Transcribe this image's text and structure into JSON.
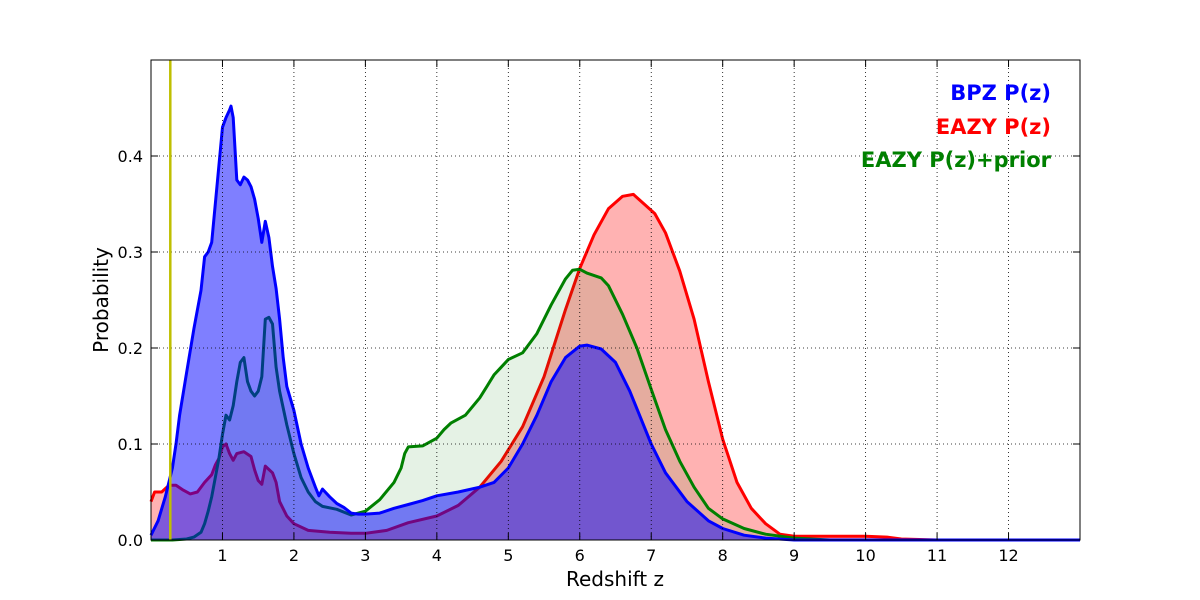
{
  "chart_data": {
    "type": "area",
    "xlabel": "Redshift z",
    "ylabel": "Probability",
    "xlim": [
      0,
      13
    ],
    "ylim": [
      0,
      0.5
    ],
    "xticks": [
      1,
      2,
      3,
      4,
      5,
      6,
      7,
      8,
      9,
      10,
      11,
      12
    ],
    "xtick_labels": [
      "1",
      "2",
      "3",
      "4",
      "5",
      "6",
      "7",
      "8",
      "9",
      "10",
      "11",
      "12"
    ],
    "yticks": [
      0.0,
      0.1,
      0.2,
      0.3,
      0.4
    ],
    "ytick_labels": [
      "0.0",
      "0.1",
      "0.2",
      "0.3",
      "0.4"
    ],
    "grid": true,
    "legend_position": "top-right",
    "vline": {
      "x": 0.27,
      "color": "#bfbf00"
    },
    "series": [
      {
        "name": "EAZY P(z)",
        "color": "#ff0000",
        "fill": "#ff0000",
        "fill_opacity": 0.3,
        "points": [
          [
            0,
            0.04
          ],
          [
            0.05,
            0.05
          ],
          [
            0.15,
            0.05
          ],
          [
            0.25,
            0.057
          ],
          [
            0.35,
            0.057
          ],
          [
            0.45,
            0.052
          ],
          [
            0.55,
            0.048
          ],
          [
            0.65,
            0.05
          ],
          [
            0.75,
            0.06
          ],
          [
            0.85,
            0.068
          ],
          [
            0.9,
            0.078
          ],
          [
            0.95,
            0.085
          ],
          [
            1.0,
            0.097
          ],
          [
            1.05,
            0.1
          ],
          [
            1.1,
            0.09
          ],
          [
            1.15,
            0.083
          ],
          [
            1.2,
            0.09
          ],
          [
            1.3,
            0.092
          ],
          [
            1.4,
            0.087
          ],
          [
            1.45,
            0.073
          ],
          [
            1.5,
            0.062
          ],
          [
            1.55,
            0.058
          ],
          [
            1.6,
            0.077
          ],
          [
            1.7,
            0.07
          ],
          [
            1.75,
            0.06
          ],
          [
            1.8,
            0.04
          ],
          [
            1.9,
            0.025
          ],
          [
            2.0,
            0.017
          ],
          [
            2.2,
            0.01
          ],
          [
            2.5,
            0.008
          ],
          [
            2.8,
            0.007
          ],
          [
            3.0,
            0.007
          ],
          [
            3.3,
            0.01
          ],
          [
            3.6,
            0.018
          ],
          [
            4.0,
            0.025
          ],
          [
            4.3,
            0.036
          ],
          [
            4.6,
            0.055
          ],
          [
            4.9,
            0.082
          ],
          [
            5.2,
            0.118
          ],
          [
            5.5,
            0.17
          ],
          [
            5.8,
            0.24
          ],
          [
            6.0,
            0.283
          ],
          [
            6.2,
            0.318
          ],
          [
            6.4,
            0.345
          ],
          [
            6.6,
            0.358
          ],
          [
            6.75,
            0.36
          ],
          [
            6.9,
            0.35
          ],
          [
            7.05,
            0.34
          ],
          [
            7.2,
            0.32
          ],
          [
            7.4,
            0.28
          ],
          [
            7.6,
            0.23
          ],
          [
            7.8,
            0.165
          ],
          [
            8.0,
            0.105
          ],
          [
            8.2,
            0.06
          ],
          [
            8.4,
            0.033
          ],
          [
            8.6,
            0.017
          ],
          [
            8.8,
            0.006
          ],
          [
            9.0,
            0.004
          ],
          [
            9.5,
            0.004
          ],
          [
            10.0,
            0.004
          ],
          [
            10.3,
            0.003
          ],
          [
            10.5,
            0.001
          ],
          [
            11.0,
            0.0
          ],
          [
            13,
            0.0
          ]
        ]
      },
      {
        "name": "EAZY P(z)+prior",
        "color": "#008000",
        "fill": "#008000",
        "fill_opacity": 0.1,
        "points": [
          [
            0,
            0.0
          ],
          [
            0.3,
            0.0
          ],
          [
            0.5,
            0.001
          ],
          [
            0.6,
            0.003
          ],
          [
            0.7,
            0.008
          ],
          [
            0.75,
            0.017
          ],
          [
            0.8,
            0.03
          ],
          [
            0.85,
            0.045
          ],
          [
            0.9,
            0.065
          ],
          [
            0.95,
            0.085
          ],
          [
            1.0,
            0.11
          ],
          [
            1.05,
            0.13
          ],
          [
            1.1,
            0.125
          ],
          [
            1.15,
            0.14
          ],
          [
            1.2,
            0.165
          ],
          [
            1.25,
            0.185
          ],
          [
            1.3,
            0.19
          ],
          [
            1.35,
            0.165
          ],
          [
            1.4,
            0.155
          ],
          [
            1.45,
            0.15
          ],
          [
            1.5,
            0.155
          ],
          [
            1.55,
            0.17
          ],
          [
            1.6,
            0.23
          ],
          [
            1.65,
            0.232
          ],
          [
            1.7,
            0.225
          ],
          [
            1.75,
            0.18
          ],
          [
            1.8,
            0.155
          ],
          [
            1.9,
            0.12
          ],
          [
            2.0,
            0.09
          ],
          [
            2.1,
            0.065
          ],
          [
            2.2,
            0.05
          ],
          [
            2.3,
            0.04
          ],
          [
            2.4,
            0.035
          ],
          [
            2.6,
            0.032
          ],
          [
            2.8,
            0.026
          ],
          [
            3.0,
            0.03
          ],
          [
            3.2,
            0.042
          ],
          [
            3.4,
            0.06
          ],
          [
            3.5,
            0.075
          ],
          [
            3.55,
            0.09
          ],
          [
            3.6,
            0.097
          ],
          [
            3.8,
            0.098
          ],
          [
            4.0,
            0.106
          ],
          [
            4.1,
            0.115
          ],
          [
            4.2,
            0.122
          ],
          [
            4.4,
            0.13
          ],
          [
            4.6,
            0.148
          ],
          [
            4.7,
            0.16
          ],
          [
            4.8,
            0.172
          ],
          [
            4.9,
            0.18
          ],
          [
            5.0,
            0.188
          ],
          [
            5.2,
            0.195
          ],
          [
            5.4,
            0.215
          ],
          [
            5.6,
            0.245
          ],
          [
            5.8,
            0.272
          ],
          [
            5.9,
            0.281
          ],
          [
            6.0,
            0.282
          ],
          [
            6.1,
            0.278
          ],
          [
            6.3,
            0.273
          ],
          [
            6.4,
            0.265
          ],
          [
            6.6,
            0.235
          ],
          [
            6.8,
            0.2
          ],
          [
            7.0,
            0.157
          ],
          [
            7.2,
            0.115
          ],
          [
            7.4,
            0.082
          ],
          [
            7.6,
            0.055
          ],
          [
            7.8,
            0.033
          ],
          [
            8.0,
            0.022
          ],
          [
            8.3,
            0.012
          ],
          [
            8.6,
            0.006
          ],
          [
            9.0,
            0.002
          ],
          [
            9.5,
            0.0
          ],
          [
            13,
            0.0
          ]
        ]
      },
      {
        "name": "BPZ P(z)",
        "color": "#0000ff",
        "fill": "#0000ff",
        "fill_opacity": 0.5,
        "points": [
          [
            0,
            0.005
          ],
          [
            0.1,
            0.02
          ],
          [
            0.2,
            0.045
          ],
          [
            0.3,
            0.075
          ],
          [
            0.35,
            0.1
          ],
          [
            0.4,
            0.13
          ],
          [
            0.5,
            0.175
          ],
          [
            0.6,
            0.22
          ],
          [
            0.7,
            0.26
          ],
          [
            0.75,
            0.295
          ],
          [
            0.8,
            0.3
          ],
          [
            0.85,
            0.31
          ],
          [
            0.9,
            0.35
          ],
          [
            0.95,
            0.39
          ],
          [
            1.0,
            0.43
          ],
          [
            1.05,
            0.44
          ],
          [
            1.1,
            0.448
          ],
          [
            1.12,
            0.452
          ],
          [
            1.15,
            0.44
          ],
          [
            1.2,
            0.375
          ],
          [
            1.25,
            0.37
          ],
          [
            1.3,
            0.378
          ],
          [
            1.35,
            0.375
          ],
          [
            1.4,
            0.368
          ],
          [
            1.45,
            0.355
          ],
          [
            1.5,
            0.335
          ],
          [
            1.55,
            0.31
          ],
          [
            1.6,
            0.332
          ],
          [
            1.65,
            0.315
          ],
          [
            1.7,
            0.285
          ],
          [
            1.75,
            0.262
          ],
          [
            1.8,
            0.23
          ],
          [
            1.85,
            0.19
          ],
          [
            1.9,
            0.16
          ],
          [
            2.0,
            0.135
          ],
          [
            2.1,
            0.1
          ],
          [
            2.2,
            0.075
          ],
          [
            2.3,
            0.055
          ],
          [
            2.35,
            0.046
          ],
          [
            2.4,
            0.053
          ],
          [
            2.5,
            0.045
          ],
          [
            2.6,
            0.038
          ],
          [
            2.7,
            0.034
          ],
          [
            2.8,
            0.028
          ],
          [
            2.9,
            0.027
          ],
          [
            3.0,
            0.027
          ],
          [
            3.2,
            0.028
          ],
          [
            3.4,
            0.033
          ],
          [
            3.6,
            0.037
          ],
          [
            3.8,
            0.041
          ],
          [
            4.0,
            0.046
          ],
          [
            4.3,
            0.05
          ],
          [
            4.6,
            0.055
          ],
          [
            4.8,
            0.06
          ],
          [
            5.0,
            0.075
          ],
          [
            5.2,
            0.1
          ],
          [
            5.4,
            0.13
          ],
          [
            5.6,
            0.165
          ],
          [
            5.8,
            0.19
          ],
          [
            6.0,
            0.202
          ],
          [
            6.1,
            0.203
          ],
          [
            6.3,
            0.199
          ],
          [
            6.5,
            0.185
          ],
          [
            6.7,
            0.155
          ],
          [
            7.0,
            0.1
          ],
          [
            7.2,
            0.07
          ],
          [
            7.5,
            0.04
          ],
          [
            7.8,
            0.02
          ],
          [
            8.0,
            0.012
          ],
          [
            8.3,
            0.005
          ],
          [
            8.6,
            0.002
          ],
          [
            9.0,
            0.0
          ],
          [
            13,
            0.0
          ]
        ]
      }
    ],
    "legend": [
      {
        "label": "BPZ P(z)",
        "color": "#0000ff"
      },
      {
        "label": "EAZY P(z)",
        "color": "#ff0000"
      },
      {
        "label": "EAZY P(z)+prior",
        "color": "#008000"
      }
    ]
  }
}
